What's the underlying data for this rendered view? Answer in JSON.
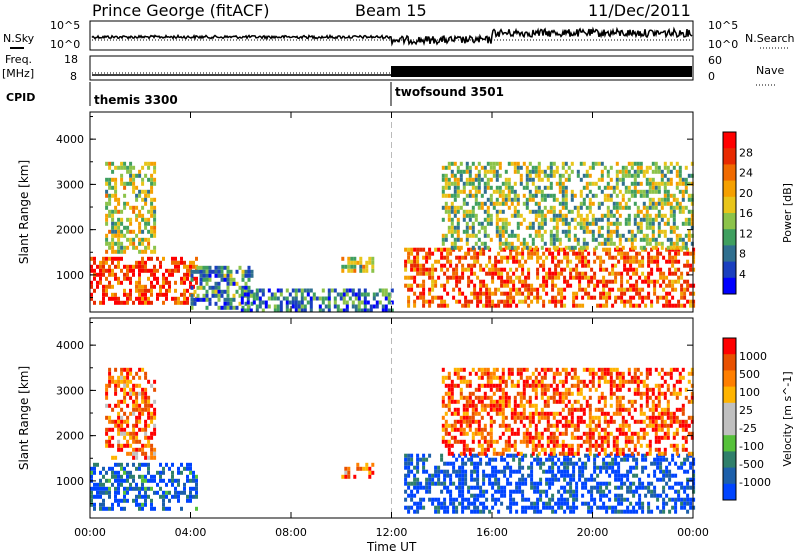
{
  "header": {
    "station": "Prince George (fitACF)",
    "beam": "Beam 15",
    "date": "11/Dec/2011"
  },
  "strips": {
    "nsky_label": "N.Sky",
    "nsearch_label": "N.Search",
    "freq_label_1": "Freq.",
    "freq_label_2": "[MHz]",
    "nave_label": "Nave",
    "cpid_label": "CPID",
    "noise_ticks": [
      "10^5",
      "10^0"
    ],
    "noise_ticks_right": [
      "10^5",
      "10^0"
    ],
    "freq_ticks": [
      "18",
      "8"
    ],
    "nave_ticks": [
      "60",
      "0"
    ],
    "cpid_segments": [
      {
        "name": "themis 3300",
        "start_h": 0,
        "end_h": 12
      },
      {
        "name": "twofsound 3501",
        "start_h": 12,
        "end_h": 24
      }
    ]
  },
  "chart_data": [
    {
      "type": "heatmap",
      "title": "Power",
      "xlabel": "Time UT",
      "ylabel": "Slant Range [km]",
      "xlim_hours": [
        0,
        24
      ],
      "ylim_km": [
        180,
        4600
      ],
      "x_ticks": [
        "00:00",
        "04:00",
        "08:00",
        "12:00",
        "16:00",
        "20:00",
        "00:00"
      ],
      "y_ticks": [
        1000,
        2000,
        3000,
        4000
      ],
      "colorbar": {
        "label": "Power [dB]",
        "ticks": [
          "28",
          "24",
          "20",
          "16",
          "12",
          "8",
          "4"
        ],
        "colors": [
          "#0000ff",
          "#1a3fbf",
          "#2f6f8f",
          "#3f9f5f",
          "#8cc34a",
          "#e8c51a",
          "#f5a000",
          "#f06a00",
          "#e82a00",
          "#ff0000"
        ]
      },
      "vertical_marker_h": 12,
      "echo_regions": [
        {
          "t0": 0.0,
          "t1": 4.2,
          "r0": 350,
          "r1": 1400,
          "level": 0.85
        },
        {
          "t0": 0.6,
          "t1": 2.6,
          "r0": 1500,
          "r1": 3500,
          "level": 0.5
        },
        {
          "t0": 4.0,
          "t1": 6.5,
          "r0": 300,
          "r1": 1200,
          "level": 0.3
        },
        {
          "t0": 6.0,
          "t1": 12.0,
          "r0": 250,
          "r1": 700,
          "level": 0.25
        },
        {
          "t0": 10.0,
          "t1": 11.2,
          "r0": 1050,
          "r1": 1400,
          "level": 0.5
        },
        {
          "t0": 12.5,
          "t1": 24.0,
          "r0": 300,
          "r1": 1600,
          "level": 0.8
        },
        {
          "t0": 14.0,
          "t1": 24.0,
          "r0": 1600,
          "r1": 3500,
          "level": 0.45
        }
      ]
    },
    {
      "type": "heatmap",
      "title": "Velocity",
      "xlabel": "Time UT",
      "ylabel": "Slant Range [km]",
      "xlim_hours": [
        0,
        24
      ],
      "ylim_km": [
        180,
        4600
      ],
      "x_ticks": [
        "00:00",
        "04:00",
        "08:00",
        "12:00",
        "16:00",
        "20:00",
        "00:00"
      ],
      "y_ticks": [
        1000,
        2000,
        3000,
        4000
      ],
      "colorbar": {
        "label": "Velocity [m s^-1]",
        "ticks": [
          "1000",
          "500",
          "100",
          "25",
          "-25",
          "-100",
          "-500",
          "-1000"
        ],
        "colors": [
          "#0044ff",
          "#1c5faa",
          "#2f7f6a",
          "#56c13a",
          "#c0c0c0",
          "#c0c0c0",
          "#ffb400",
          "#ff7f00",
          "#e85000",
          "#ff0000"
        ]
      },
      "vertical_marker_h": 12,
      "echo_regions": [
        {
          "t0": 0.0,
          "t1": 4.2,
          "r0": 350,
          "r1": 1400,
          "level": 0.1
        },
        {
          "t0": 0.6,
          "t1": 2.6,
          "r0": 1500,
          "r1": 3500,
          "level": 0.8
        },
        {
          "t0": 10.0,
          "t1": 11.2,
          "r0": 1050,
          "r1": 1400,
          "level": 0.8
        },
        {
          "t0": 12.5,
          "t1": 24.0,
          "r0": 300,
          "r1": 1600,
          "level": 0.05
        },
        {
          "t0": 14.0,
          "t1": 24.0,
          "r0": 1600,
          "r1": 3500,
          "level": 0.85
        }
      ]
    }
  ]
}
